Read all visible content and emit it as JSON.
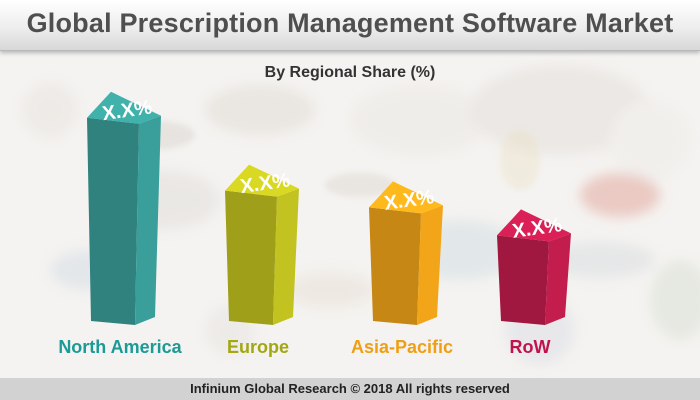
{
  "title": "Global Prescription Management Software Market",
  "footer": "Infinium Global Research © 2018 All rights reserved",
  "chart_data": {
    "type": "bar",
    "style": "3d-column",
    "subtitle": "By Regional Share (%)",
    "categories": [
      "North America",
      "Europe",
      "Asia-Pacific",
      "RoW"
    ],
    "values": [
      37,
      24,
      21,
      16
    ],
    "value_labels": [
      "X.X%",
      "X.X%",
      "X.X%",
      "X.X%"
    ],
    "colors": [
      "#3a9e9a",
      "#c2c220",
      "#f2a519",
      "#c31d4e"
    ],
    "label_colors": [
      "#1c9a95",
      "#a3a712",
      "#ef9f14",
      "#c0134b"
    ],
    "grid": false,
    "legend": "none"
  }
}
